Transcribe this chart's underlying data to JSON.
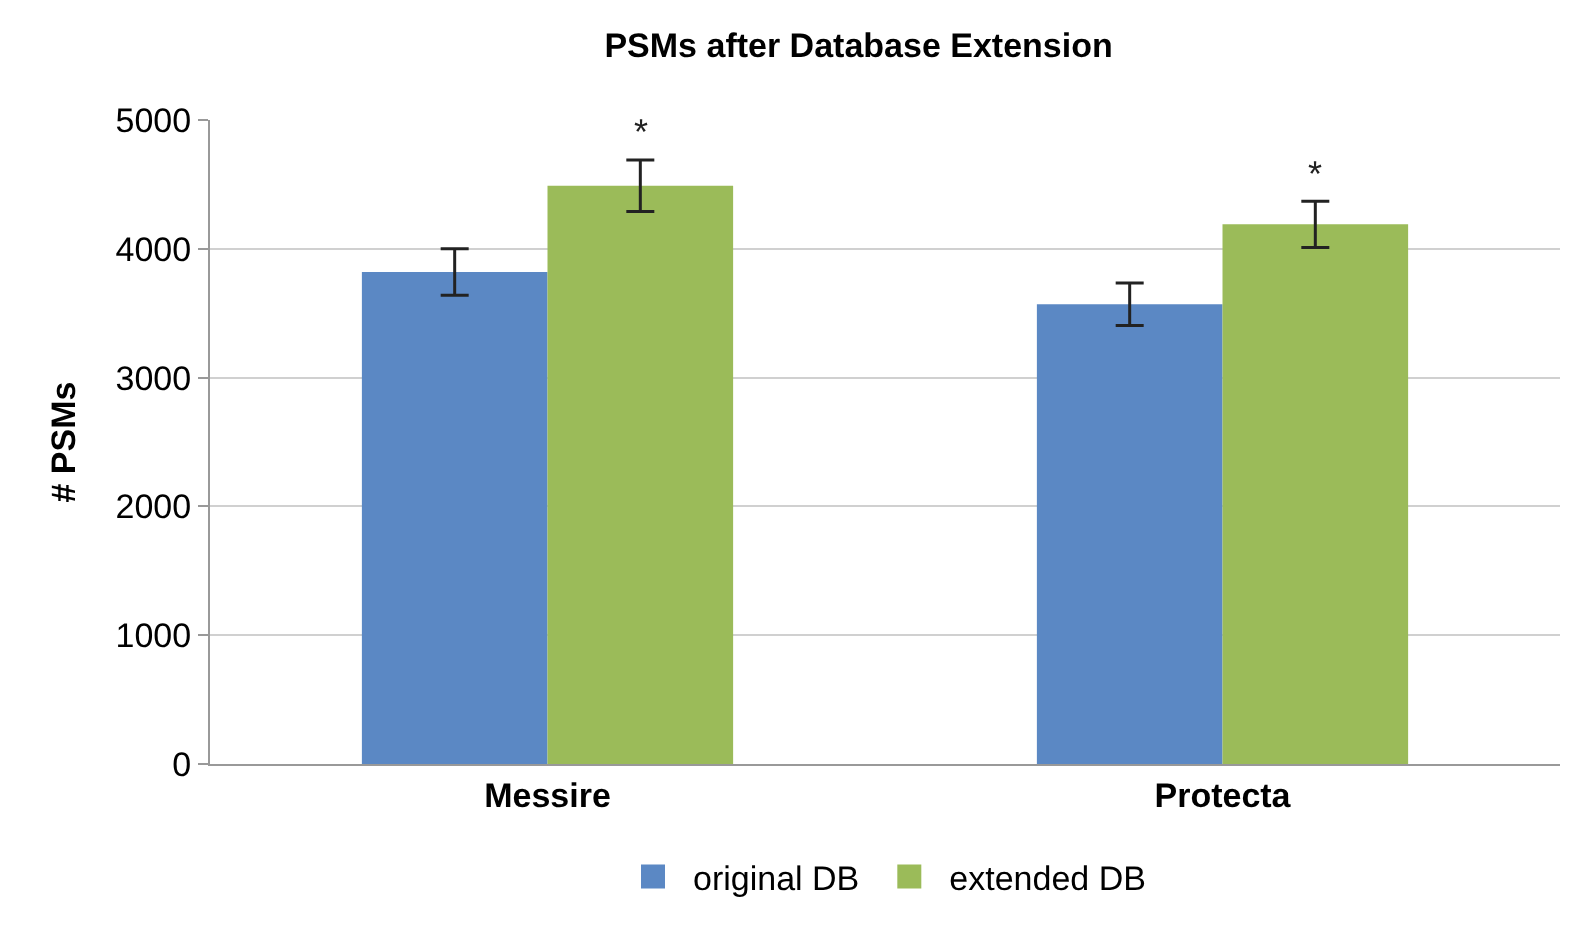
{
  "chart_data": {
    "type": "bar",
    "title": "PSMs after Database Extension",
    "ylabel": "# PSMs",
    "categories": [
      "Messire",
      "Protecta"
    ],
    "series": [
      {
        "name": "original DB",
        "color": "#5b88c4",
        "values": [
          3820,
          3570
        ],
        "errors": [
          180,
          165
        ]
      },
      {
        "name": "extended DB",
        "color": "#9bbb59",
        "values": [
          4490,
          4190
        ],
        "errors": [
          200,
          180
        ]
      }
    ],
    "annotations": [
      "*",
      "*"
    ],
    "ylim": [
      0,
      5000
    ],
    "yticks": [
      0,
      1000,
      2000,
      3000,
      4000,
      5000
    ],
    "grid": "y",
    "legend": "bottom"
  }
}
